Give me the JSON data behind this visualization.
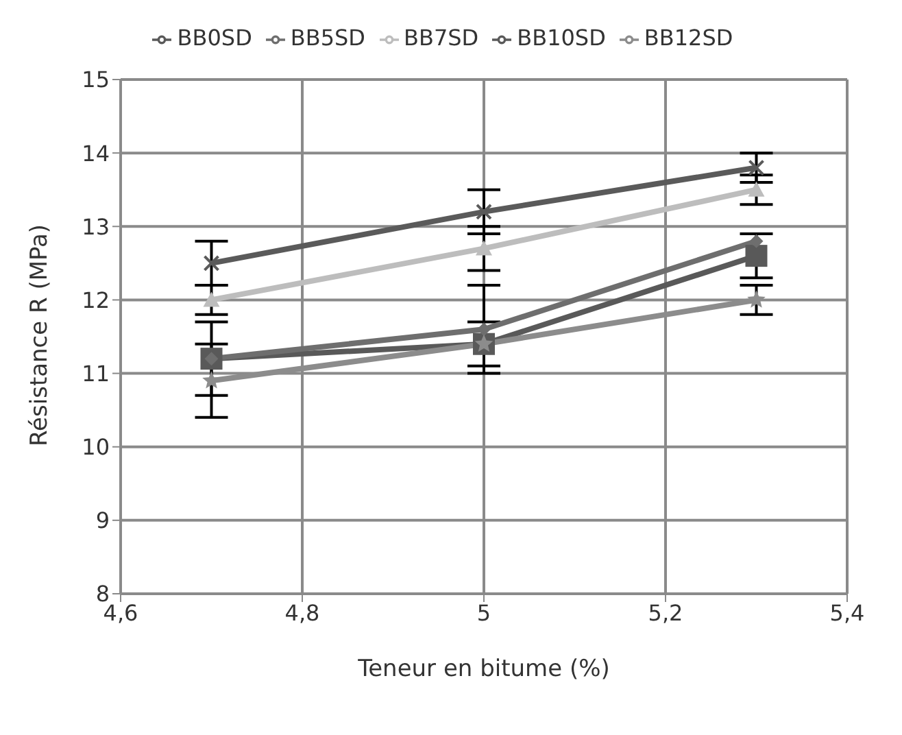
{
  "chart_data": {
    "type": "line",
    "xlabel": "Teneur en bitume (%)",
    "ylabel": "Résistance R (MPa)",
    "x": [
      4.7,
      5,
      5.3
    ],
    "series": [
      {
        "name": "BB0SD",
        "color": "#595959",
        "marker": "square",
        "values": [
          11.2,
          11.4,
          12.6
        ],
        "errors": [
          0.5,
          0.3,
          0.3
        ]
      },
      {
        "name": "BB5SD",
        "color": "#6e6e6e",
        "marker": "diamond",
        "values": [
          11.2,
          11.6,
          12.8
        ],
        "errors": [
          null,
          0.6,
          null
        ]
      },
      {
        "name": "BB7SD",
        "color": "#bdbdbd",
        "marker": "triangle",
        "values": [
          12.0,
          12.7,
          13.5
        ],
        "errors": [
          0.2,
          0.3,
          0.2
        ]
      },
      {
        "name": "BB10SD",
        "color": "#5a5a5a",
        "marker": "cross",
        "values": [
          12.5,
          13.2,
          13.8
        ],
        "errors": [
          0.3,
          0.3,
          0.2
        ]
      },
      {
        "name": "BB12SD",
        "color": "#8c8c8c",
        "marker": "star",
        "values": [
          10.9,
          11.4,
          12.0
        ],
        "errors": [
          0.5,
          null,
          0.2
        ]
      }
    ],
    "xlim": [
      4.6,
      5.4
    ],
    "xticks": [
      {
        "value": 4.6,
        "label": "4,6"
      },
      {
        "value": 4.8,
        "label": "4,8"
      },
      5,
      {
        "value": 5.2,
        "label": "5,2"
      },
      {
        "value": 5.4,
        "label": "5,4"
      }
    ],
    "ylim": [
      8,
      15
    ],
    "yticks": [
      8,
      9,
      10,
      11,
      12,
      13,
      14,
      15
    ],
    "grid": true,
    "legend": "top"
  }
}
